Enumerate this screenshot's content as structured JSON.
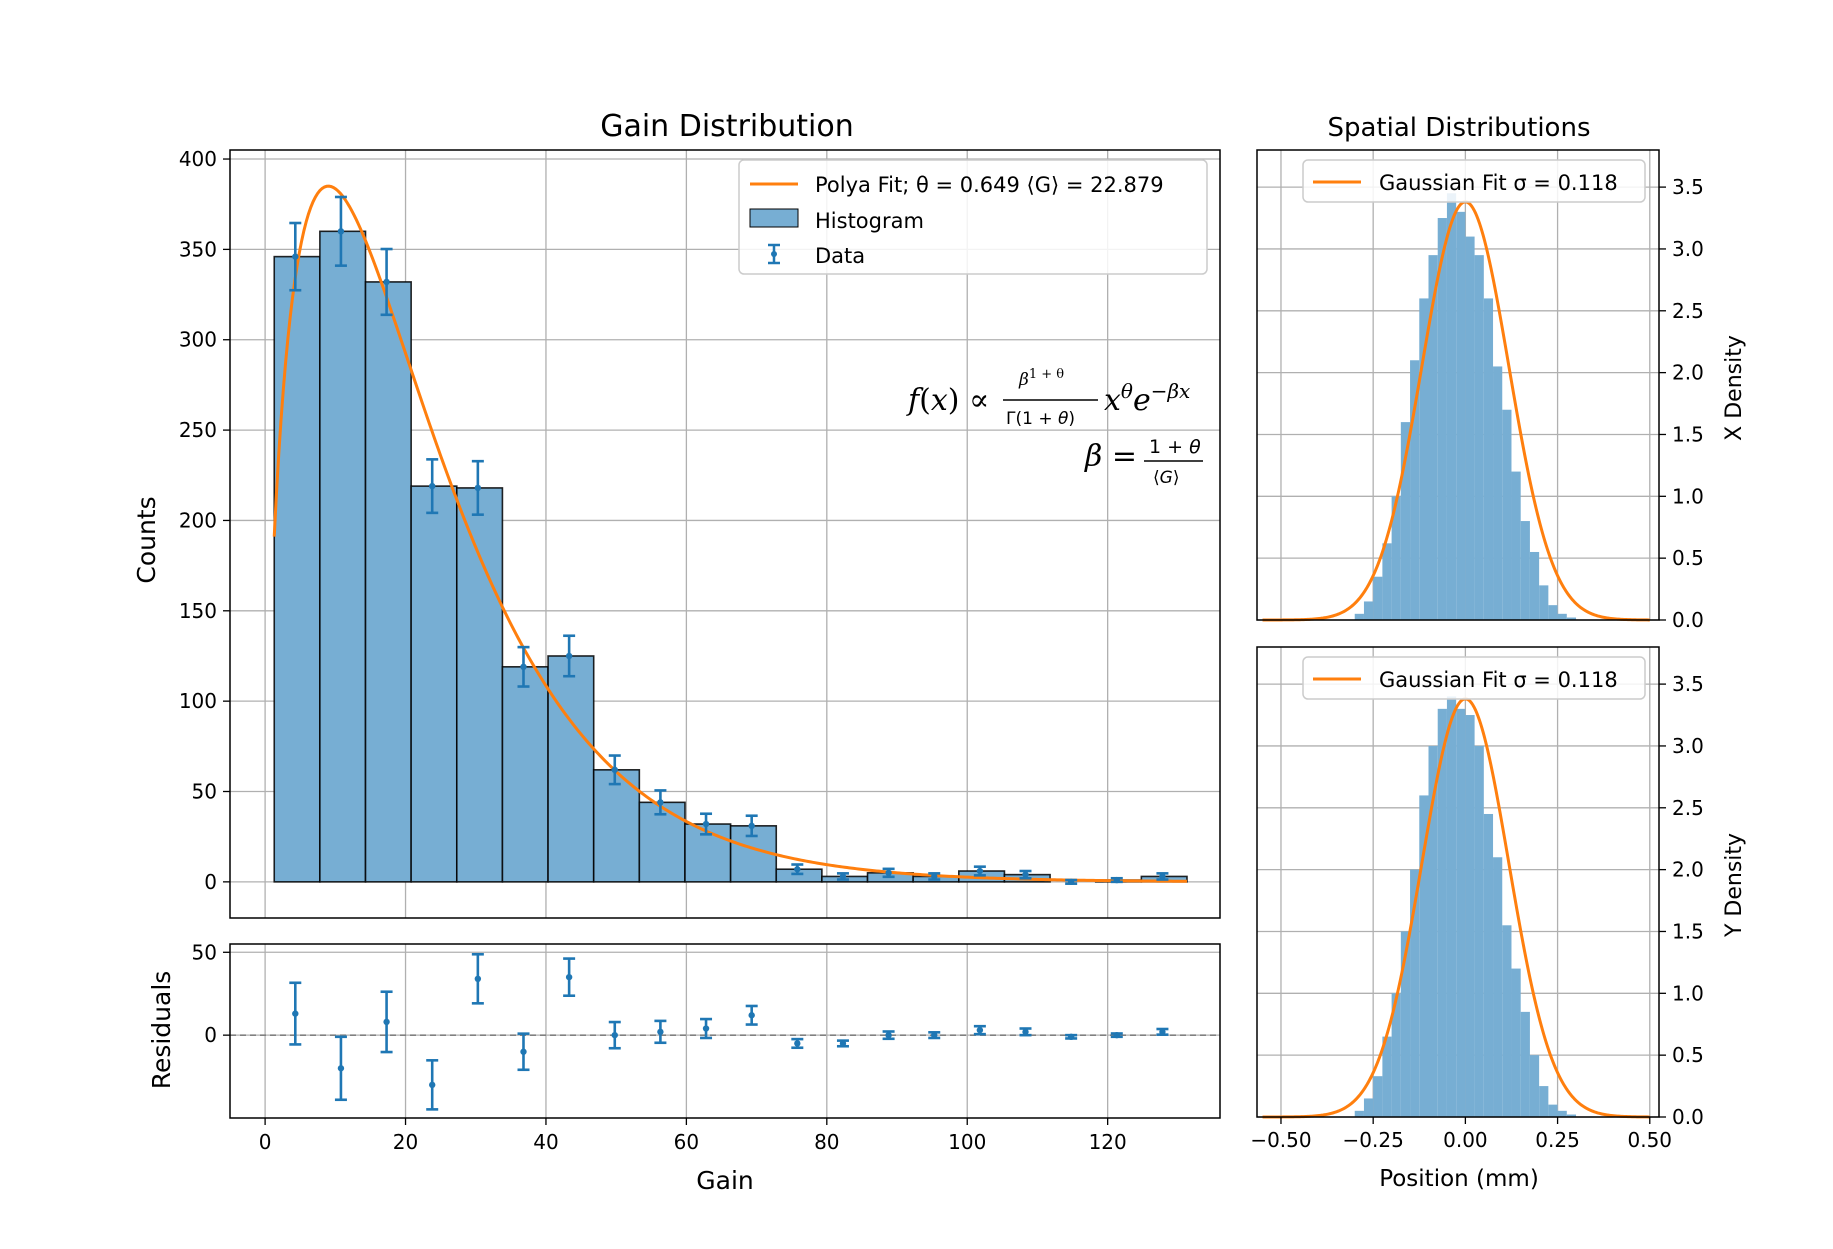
{
  "chart_data": [
    {
      "id": "gain",
      "type": "bar",
      "title": "Gain Distribution",
      "xlabel": "Gain",
      "ylabel": "Counts",
      "xlim": [
        -5,
        136
      ],
      "ylim": [
        -20,
        405
      ],
      "grid": true,
      "xticks": [
        0,
        20,
        40,
        60,
        80,
        100,
        120
      ],
      "yticks": [
        0,
        50,
        100,
        150,
        200,
        250,
        300,
        350,
        400
      ],
      "bin_edges": [
        1.3,
        7.8,
        14.3,
        20.8,
        27.3,
        33.8,
        40.3,
        46.8,
        53.3,
        59.8,
        66.3,
        72.8,
        79.3,
        85.8,
        92.3,
        98.8,
        105.3,
        111.8,
        118.3,
        124.8,
        131.3
      ],
      "counts": [
        346,
        360,
        332,
        219,
        218,
        119,
        125,
        62,
        44,
        32,
        31,
        7,
        3,
        5,
        3,
        6,
        4,
        0,
        1,
        3
      ],
      "data_points": {
        "x": [
          4.3,
          10.8,
          17.3,
          23.8,
          30.3,
          36.8,
          43.3,
          49.8,
          56.3,
          62.8,
          69.3,
          75.8,
          82.3,
          88.8,
          95.3,
          101.8,
          108.3,
          114.8,
          121.3,
          127.8
        ],
        "y": [
          346,
          360,
          332,
          219,
          218,
          119,
          125,
          62,
          44,
          32,
          31,
          7,
          3,
          5,
          3,
          6,
          4,
          0,
          1,
          3
        ],
        "err": [
          18.6,
          19.0,
          18.2,
          14.8,
          14.8,
          10.9,
          11.2,
          7.9,
          6.6,
          5.7,
          5.6,
          2.6,
          1.7,
          2.2,
          1.7,
          2.4,
          2.0,
          1.0,
          1.0,
          1.7
        ]
      },
      "fit": {
        "type": "polya",
        "theta": 0.649,
        "mean_gain": 22.879,
        "x_start": 1.3,
        "x_end": 131.3,
        "peak_x": 9.2,
        "peak_y": 385
      },
      "legend": {
        "placement": "top-right",
        "entries": [
          "Polya Fit; θ = 0.649  ⟨G⟩ = 22.879",
          "Histogram",
          "Data"
        ]
      },
      "annotation": {
        "formula_line1": "f(x) ∝ β^(1+θ)/Γ(1+θ) x^θ e^(−βx)",
        "formula_line2": "β = (1+θ)/⟨G⟩"
      },
      "colors": {
        "bars": "#77aed3",
        "bar_edge": "#000000",
        "fit": "#ff7f0e",
        "data": "#1f77b4"
      }
    },
    {
      "id": "residuals",
      "type": "scatter",
      "xlabel": "Gain",
      "ylabel": "Residuals",
      "xlim": [
        -5,
        136
      ],
      "ylim": [
        -50,
        55
      ],
      "yticks": [
        0,
        50
      ],
      "xticks": [
        0,
        20,
        40,
        60,
        80,
        100,
        120
      ],
      "x": [
        4.3,
        10.8,
        17.3,
        23.8,
        30.3,
        36.8,
        43.3,
        49.8,
        56.3,
        62.8,
        69.3,
        75.8,
        82.3,
        88.8,
        95.3,
        101.8,
        108.3,
        114.8,
        121.3,
        127.8
      ],
      "y": [
        13,
        -20,
        8,
        -30,
        34,
        -10,
        35,
        0,
        2,
        4,
        12,
        -5,
        -5,
        0,
        0,
        3,
        2,
        -1,
        0,
        2
      ],
      "err": [
        18.6,
        19.0,
        18.2,
        14.8,
        14.8,
        10.9,
        11.2,
        7.9,
        6.6,
        5.7,
        5.6,
        2.6,
        1.7,
        2.2,
        1.7,
        2.4,
        2.0,
        1.0,
        1.0,
        1.7
      ],
      "zero_line": true
    },
    {
      "id": "xdens",
      "type": "bar",
      "title": "Spatial Distributions",
      "ylabel": "X Density",
      "xlim": [
        -0.565,
        0.525
      ],
      "ylim": [
        0,
        3.8
      ],
      "xticks": [
        -0.5,
        -0.25,
        0.0,
        0.25,
        0.5
      ],
      "yticks": [
        0.0,
        0.5,
        1.0,
        1.5,
        2.0,
        2.5,
        3.0,
        3.5
      ],
      "bin_edges": [
        -0.3,
        -0.275,
        -0.25,
        -0.225,
        -0.2,
        -0.175,
        -0.15,
        -0.125,
        -0.1,
        -0.075,
        -0.05,
        -0.025,
        0.0,
        0.025,
        0.05,
        0.075,
        0.1,
        0.125,
        0.15,
        0.175,
        0.2,
        0.225,
        0.25,
        0.275,
        0.3
      ],
      "density": [
        0.05,
        0.15,
        0.35,
        0.62,
        1.0,
        1.6,
        2.1,
        2.6,
        2.95,
        3.25,
        3.45,
        3.3,
        3.1,
        2.95,
        2.6,
        2.05,
        1.7,
        1.2,
        0.8,
        0.55,
        0.28,
        0.12,
        0.05,
        0.02
      ],
      "fit_sigma": 0.118,
      "legend": {
        "placement": "top-center",
        "entries": [
          "Gaussian Fit σ = 0.118"
        ]
      }
    },
    {
      "id": "ydens",
      "type": "bar",
      "xlabel": "Position (mm)",
      "ylabel": "Y Density",
      "xlim": [
        -0.565,
        0.525
      ],
      "ylim": [
        0,
        3.8
      ],
      "xticks": [
        -0.5,
        -0.25,
        0.0,
        0.25,
        0.5
      ],
      "xticklabels": [
        "−0.50",
        "−0.25",
        "0.00",
        "0.25",
        "0.50"
      ],
      "yticks": [
        0.0,
        0.5,
        1.0,
        1.5,
        2.0,
        2.5,
        3.0,
        3.5
      ],
      "bin_edges": [
        -0.3,
        -0.275,
        -0.25,
        -0.225,
        -0.2,
        -0.175,
        -0.15,
        -0.125,
        -0.1,
        -0.075,
        -0.05,
        -0.025,
        0.0,
        0.025,
        0.05,
        0.075,
        0.1,
        0.125,
        0.15,
        0.175,
        0.2,
        0.225,
        0.25,
        0.275,
        0.3
      ],
      "density": [
        0.05,
        0.15,
        0.33,
        0.65,
        1.0,
        1.5,
        2.0,
        2.6,
        3.0,
        3.3,
        3.4,
        3.3,
        3.25,
        3.0,
        2.45,
        2.1,
        1.55,
        1.2,
        0.85,
        0.5,
        0.25,
        0.1,
        0.05,
        0.02
      ],
      "fit_sigma": 0.118,
      "legend": {
        "placement": "top-center",
        "entries": [
          "Gaussian Fit σ = 0.118"
        ]
      }
    }
  ]
}
